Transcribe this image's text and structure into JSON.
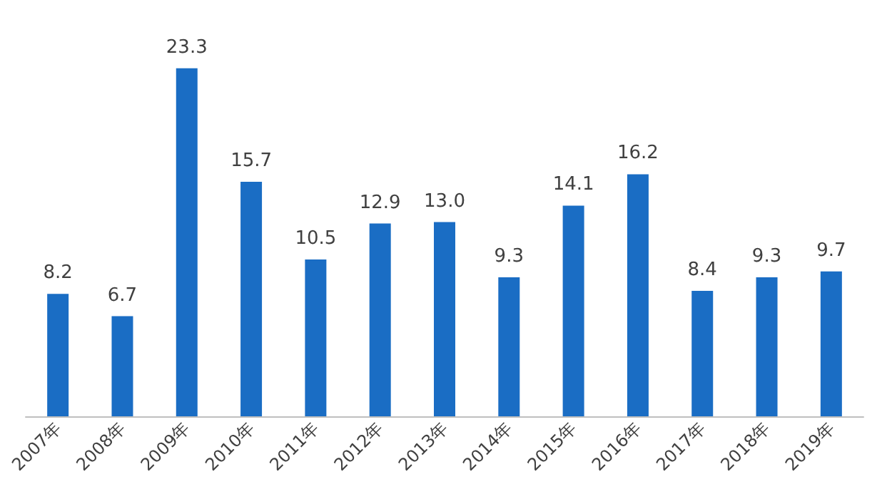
{
  "chart_data": {
    "type": "bar",
    "categories": [
      "2007年",
      "2008年",
      "2009年",
      "2010年",
      "2011年",
      "2012年",
      "2013年",
      "2014年",
      "2015年",
      "2016年",
      "2017年",
      "2018年",
      "2019年"
    ],
    "values": [
      8.2,
      6.7,
      23.3,
      15.7,
      10.5,
      12.9,
      13.0,
      9.3,
      14.1,
      16.2,
      8.4,
      9.3,
      9.7
    ],
    "value_labels": [
      "8.2",
      "6.7",
      "23.3",
      "15.7",
      "10.5",
      "12.9",
      "13.0",
      "9.3",
      "14.1",
      "16.2",
      "8.4",
      "9.3",
      "9.7"
    ],
    "color": "#1a6dc4",
    "tick_labels": "x"
  }
}
